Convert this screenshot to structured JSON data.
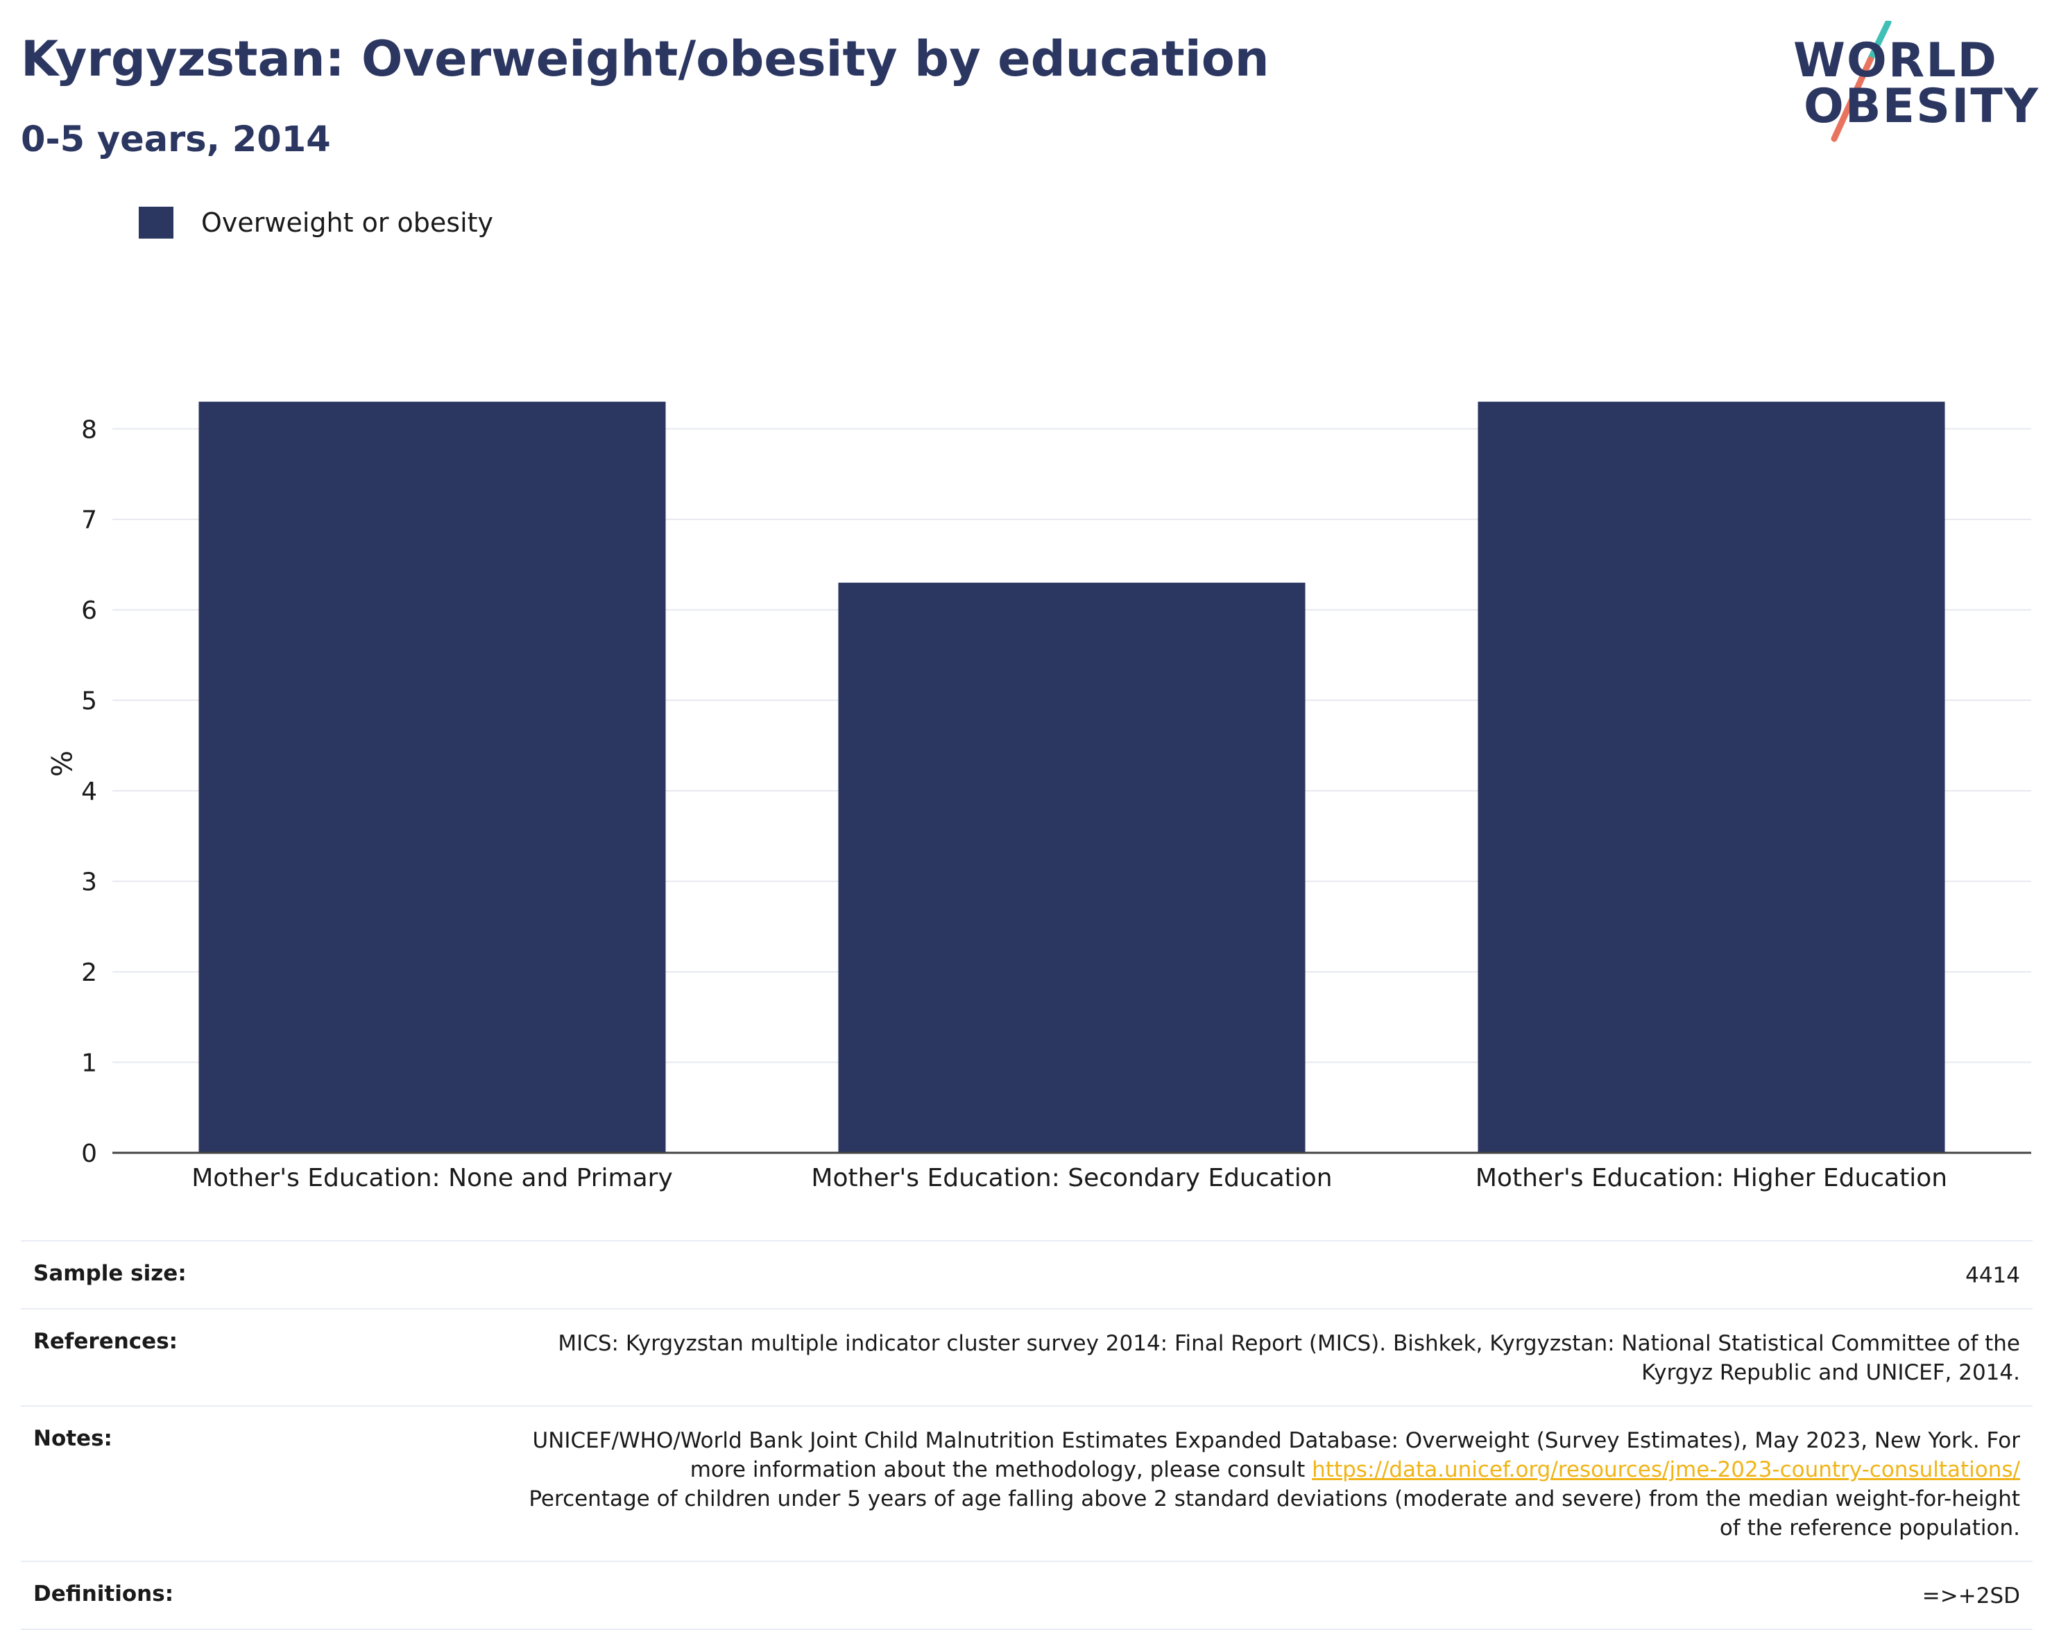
{
  "header": {
    "title": "Kyrgyzstan: Overweight/obesity by education",
    "subtitle": "0-5 years, 2014"
  },
  "logo": {
    "line1": "WORLD",
    "line2": "OBESITY",
    "slash_colors": [
      "#3fbfb5",
      "#e8735f"
    ]
  },
  "legend": {
    "label": "Overweight or obesity",
    "color": "#2b3661"
  },
  "chart_data": {
    "type": "bar",
    "title": "Kyrgyzstan: Overweight/obesity by education",
    "subtitle": "0-5 years, 2014",
    "categories": [
      "Mother's Education: None and Primary",
      "Mother's Education: Secondary Education",
      "Mother's Education: Higher Education"
    ],
    "series": [
      {
        "name": "Overweight or obesity",
        "values": [
          8.3,
          6.3,
          8.3
        ],
        "color": "#2b3661"
      }
    ],
    "xlabel": "",
    "ylabel": "%",
    "ylim": [
      0,
      8.6
    ],
    "yticks": [
      0,
      1,
      2,
      3,
      4,
      5,
      6,
      7,
      8
    ],
    "grid": true,
    "legend_position": "top-left"
  },
  "info": {
    "sample_label": "Sample size:",
    "sample_value": "4414",
    "references_label": "References:",
    "references_value": "MICS: Kyrgyzstan multiple indicator cluster survey 2014: Final Report (MICS). Bishkek, Kyrgyzstan: National Statistical Committee of the Kyrgyz Republic and UNICEF, 2014.",
    "notes_label": "Notes:",
    "notes_text_1": "UNICEF/WHO/World Bank Joint Child Malnutrition Estimates Expanded Database: Overweight (Survey Estimates), May 2023, New York. For more information about the methodology, please consult",
    "notes_link": "https://data.unicef.org/resources/jme-2023-country-consultations/",
    "notes_text_2": "Percentage of children under 5 years of age falling above 2 standard deviations (moderate and severe) from the median weight-for-height of the reference population.",
    "definitions_label": "Definitions:",
    "definitions_value": "=>+2SD"
  }
}
